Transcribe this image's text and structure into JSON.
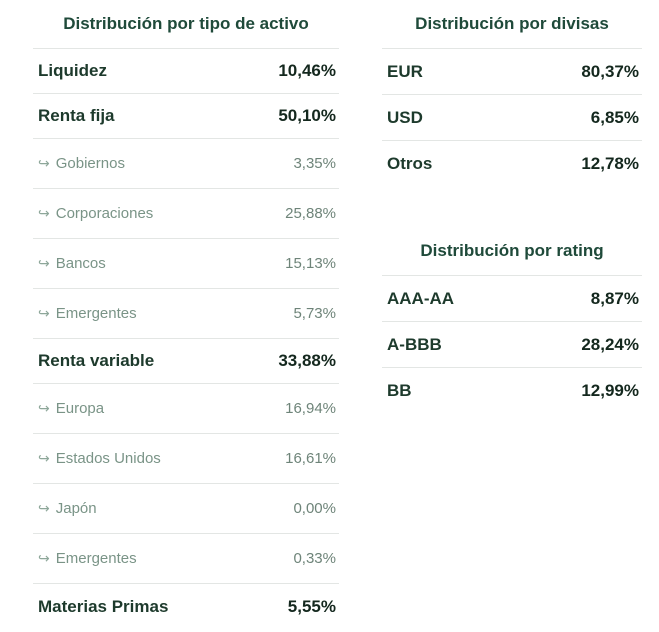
{
  "asset_allocation": {
    "title": "Distribución por tipo de activo",
    "rows": [
      {
        "label": "Liquidez",
        "value": "10,46%",
        "level": "main"
      },
      {
        "label": "Renta fija",
        "value": "50,10%",
        "level": "main"
      },
      {
        "label": "Gobiernos",
        "value": "3,35%",
        "level": "sub"
      },
      {
        "label": "Corporaciones",
        "value": "25,88%",
        "level": "sub"
      },
      {
        "label": "Bancos",
        "value": "15,13%",
        "level": "sub"
      },
      {
        "label": "Emergentes",
        "value": "5,73%",
        "level": "sub"
      },
      {
        "label": "Renta variable",
        "value": "33,88%",
        "level": "main"
      },
      {
        "label": "Europa",
        "value": "16,94%",
        "level": "sub"
      },
      {
        "label": "Estados Unidos",
        "value": "16,61%",
        "level": "sub"
      },
      {
        "label": "Japón",
        "value": "0,00%",
        "level": "sub"
      },
      {
        "label": "Emergentes",
        "value": "0,33%",
        "level": "sub"
      },
      {
        "label": "Materias Primas",
        "value": "5,55%",
        "level": "main"
      }
    ],
    "sub_arrow_icon": "subdirectory-arrow-icon",
    "sub_arrow_glyph": "↪"
  },
  "currency_allocation": {
    "title": "Distribución por divisas",
    "rows": [
      {
        "label": "EUR",
        "value": "80,37%"
      },
      {
        "label": "USD",
        "value": "6,85%"
      },
      {
        "label": "Otros",
        "value": "12,78%"
      }
    ]
  },
  "rating_allocation": {
    "title": "Distribución por rating",
    "rows": [
      {
        "label": "AAA-AA",
        "value": "8,87%"
      },
      {
        "label": "A-BBB",
        "value": "28,24%"
      },
      {
        "label": "BB",
        "value": "12,99%"
      }
    ]
  },
  "colors": {
    "title": "#1f4a3a",
    "main_text": "#1d3a2c",
    "sub_text": "#7a9487",
    "divider": "#e3e6e4"
  }
}
